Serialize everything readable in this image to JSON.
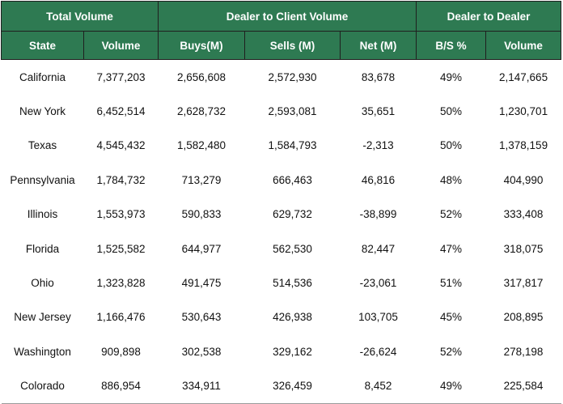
{
  "table": {
    "group_headers": [
      {
        "label": "Total Volume",
        "span": 2
      },
      {
        "label": "Dealer to Client Volume",
        "span": 3
      },
      {
        "label": "Dealer to Dealer",
        "span": 2
      }
    ],
    "columns": [
      "State",
      "Volume",
      "Buys(M)",
      "Sells (M)",
      "Net (M)",
      "B/S %",
      "Volume"
    ],
    "rows": [
      [
        "California",
        "7,377,203",
        "2,656,608",
        "2,572,930",
        "83,678",
        "49%",
        "2,147,665"
      ],
      [
        "New York",
        "6,452,514",
        "2,628,732",
        "2,593,081",
        "35,651",
        "50%",
        "1,230,701"
      ],
      [
        "Texas",
        "4,545,432",
        "1,582,480",
        "1,584,793",
        "-2,313",
        "50%",
        "1,378,159"
      ],
      [
        "Pennsylvania",
        "1,784,732",
        "713,279",
        "666,463",
        "46,816",
        "48%",
        "404,990"
      ],
      [
        "Illinois",
        "1,553,973",
        "590,833",
        "629,732",
        "-38,899",
        "52%",
        "333,408"
      ],
      [
        "Florida",
        "1,525,582",
        "644,977",
        "562,530",
        "82,447",
        "47%",
        "318,075"
      ],
      [
        "Ohio",
        "1,323,828",
        "491,475",
        "514,536",
        "-23,061",
        "51%",
        "317,817"
      ],
      [
        "New Jersey",
        "1,166,476",
        "530,643",
        "426,938",
        "103,705",
        "45%",
        "208,895"
      ],
      [
        "Washington",
        "909,898",
        "302,538",
        "329,162",
        "-26,624",
        "52%",
        "278,198"
      ],
      [
        "Colorado",
        "886,954",
        "334,911",
        "326,459",
        "8,452",
        "49%",
        "225,584"
      ]
    ]
  },
  "colors": {
    "header_bg": "#2e7a52",
    "header_text": "#ffffff",
    "border": "#1f1f1f"
  }
}
